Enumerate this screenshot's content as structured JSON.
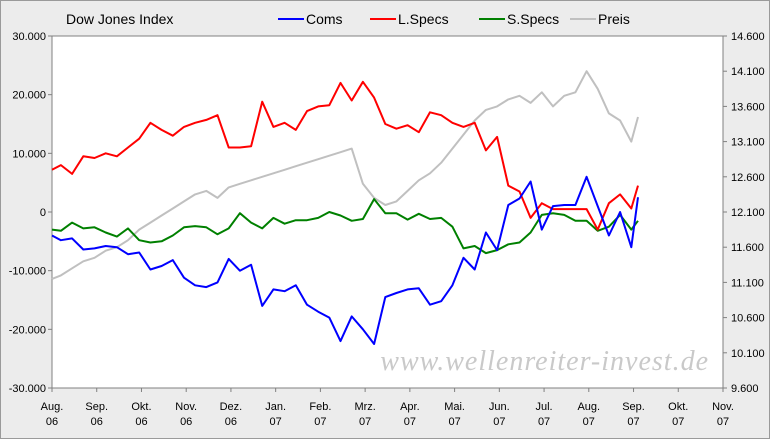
{
  "chart_data": {
    "type": "line",
    "title": "Dow Jones Index",
    "watermark": "www.wellenreiter-invest.de",
    "x_labels": [
      [
        "Aug.",
        "06"
      ],
      [
        "Sep.",
        "06"
      ],
      [
        "Okt.",
        "06"
      ],
      [
        "Nov.",
        "06"
      ],
      [
        "Dez.",
        "06"
      ],
      [
        "Jan.",
        "07"
      ],
      [
        "Feb.",
        "07"
      ],
      [
        "Mrz.",
        "07"
      ],
      [
        "Apr.",
        "07"
      ],
      [
        "Mai.",
        "07"
      ],
      [
        "Jun.",
        "07"
      ],
      [
        "Jul.",
        "07"
      ],
      [
        "Aug.",
        "07"
      ],
      [
        "Sep.",
        "07"
      ],
      [
        "Okt.",
        "07"
      ],
      [
        "Nov.",
        "07"
      ]
    ],
    "y_left": {
      "min": -30000,
      "max": 30000,
      "step": 10000,
      "ticks": [
        "30.000",
        "20.000",
        "10.000",
        "0",
        "-10.000",
        "-20.000",
        "-30.000"
      ]
    },
    "y_right": {
      "min": 9600,
      "max": 14600,
      "step": 500,
      "ticks": [
        "14.600",
        "14.100",
        "13.600",
        "13.100",
        "12.600",
        "12.100",
        "11.600",
        "11.100",
        "10.600",
        "10.100",
        "9.600"
      ]
    },
    "x_index_range": [
      0,
      15
    ],
    "series": [
      {
        "name": "Coms",
        "axis": "left",
        "color": "#0000ff",
        "x": [
          0,
          0.2,
          0.45,
          0.7,
          0.95,
          1.2,
          1.45,
          1.7,
          1.95,
          2.2,
          2.45,
          2.7,
          2.95,
          3.2,
          3.45,
          3.7,
          3.95,
          4.2,
          4.45,
          4.7,
          4.95,
          5.2,
          5.45,
          5.7,
          5.95,
          6.2,
          6.45,
          6.7,
          6.95,
          7.2,
          7.45,
          7.7,
          7.95,
          8.2,
          8.45,
          8.7,
          8.95,
          9.2,
          9.45,
          9.7,
          9.95,
          10.2,
          10.45,
          10.7,
          10.95,
          11.2,
          11.45,
          11.7,
          11.95,
          12.2,
          12.45,
          12.7,
          12.95,
          13.1
        ],
        "y": [
          -4000,
          -4800,
          -4500,
          -6400,
          -6200,
          -5800,
          -6000,
          -7200,
          -6900,
          -9800,
          -9200,
          -8200,
          -11200,
          -12500,
          -12800,
          -12000,
          -8000,
          -10000,
          -9000,
          -16000,
          -13200,
          -13500,
          -12500,
          -15800,
          -17000,
          -18000,
          -22000,
          -17800,
          -20000,
          -22500,
          -14500,
          -13800,
          -13200,
          -13000,
          -15800,
          -15200,
          -12500,
          -7800,
          -9800,
          -3500,
          -6500,
          1200,
          2300,
          5200,
          -3000,
          1000,
          1200,
          1200,
          6000,
          1000,
          -4000,
          0,
          -6000,
          2500
        ]
      },
      {
        "name": "L.Specs",
        "axis": "left",
        "color": "#ff0000",
        "x": [
          0,
          0.2,
          0.45,
          0.7,
          0.95,
          1.2,
          1.45,
          1.7,
          1.95,
          2.2,
          2.45,
          2.7,
          2.95,
          3.2,
          3.45,
          3.7,
          3.95,
          4.2,
          4.45,
          4.7,
          4.95,
          5.2,
          5.45,
          5.7,
          5.95,
          6.2,
          6.45,
          6.7,
          6.95,
          7.2,
          7.45,
          7.7,
          7.95,
          8.2,
          8.45,
          8.7,
          8.95,
          9.2,
          9.45,
          9.7,
          9.95,
          10.2,
          10.45,
          10.7,
          10.95,
          11.2,
          11.45,
          11.7,
          11.95,
          12.2,
          12.45,
          12.7,
          12.95,
          13.1
        ],
        "y": [
          7200,
          8000,
          6500,
          9500,
          9200,
          10000,
          9500,
          11000,
          12500,
          15200,
          14000,
          13000,
          14500,
          15200,
          15700,
          16500,
          11000,
          11000,
          11200,
          18800,
          14500,
          15200,
          14000,
          17200,
          18000,
          18200,
          22000,
          19000,
          22200,
          19500,
          15000,
          14200,
          14800,
          13600,
          17000,
          16500,
          15200,
          14500,
          15200,
          10500,
          12800,
          4500,
          3500,
          -1000,
          1500,
          500,
          500,
          500,
          500,
          -3000,
          1500,
          3000,
          600,
          4500
        ]
      },
      {
        "name": "S.Specs",
        "axis": "left",
        "color": "#008000",
        "x": [
          0,
          0.2,
          0.45,
          0.7,
          0.95,
          1.2,
          1.45,
          1.7,
          1.95,
          2.2,
          2.45,
          2.7,
          2.95,
          3.2,
          3.45,
          3.7,
          3.95,
          4.2,
          4.45,
          4.7,
          4.95,
          5.2,
          5.45,
          5.7,
          5.95,
          6.2,
          6.45,
          6.7,
          6.95,
          7.2,
          7.45,
          7.7,
          7.95,
          8.2,
          8.45,
          8.7,
          8.95,
          9.2,
          9.45,
          9.7,
          9.95,
          10.2,
          10.45,
          10.7,
          10.95,
          11.2,
          11.45,
          11.7,
          11.95,
          12.2,
          12.45,
          12.7,
          12.95,
          13.1
        ],
        "y": [
          -3000,
          -3200,
          -1800,
          -2800,
          -2600,
          -3500,
          -4200,
          -2800,
          -4800,
          -5200,
          -5000,
          -4000,
          -2600,
          -2400,
          -2600,
          -3800,
          -2800,
          -200,
          -1800,
          -2800,
          -1000,
          -2000,
          -1400,
          -1400,
          -1000,
          0,
          -600,
          -1500,
          -1200,
          2200,
          -200,
          -200,
          -1300,
          -300,
          -1200,
          -1000,
          -2500,
          -6200,
          -5800,
          -7000,
          -6500,
          -5500,
          -5200,
          -3500,
          -500,
          -200,
          -500,
          -1500,
          -1500,
          -3200,
          -2500,
          -500,
          -3000,
          -1500
        ]
      },
      {
        "name": "Preis",
        "axis": "right",
        "color": "#c0c0c0",
        "x": [
          0,
          0.2,
          0.45,
          0.7,
          0.95,
          1.2,
          1.45,
          1.7,
          1.95,
          2.2,
          2.45,
          2.7,
          2.95,
          3.2,
          3.45,
          3.7,
          3.95,
          4.2,
          4.45,
          4.7,
          4.95,
          5.2,
          5.45,
          5.7,
          5.95,
          6.2,
          6.45,
          6.7,
          6.95,
          7.2,
          7.45,
          7.7,
          7.95,
          8.2,
          8.45,
          8.7,
          8.95,
          9.2,
          9.45,
          9.7,
          9.95,
          10.2,
          10.45,
          10.7,
          10.95,
          11.2,
          11.45,
          11.7,
          11.95,
          12.2,
          12.45,
          12.7,
          12.95,
          13.1
        ],
        "y": [
          11150,
          11200,
          11300,
          11400,
          11450,
          11550,
          11600,
          11700,
          11850,
          11950,
          12050,
          12150,
          12250,
          12350,
          12400,
          12300,
          12450,
          12500,
          12550,
          12600,
          12650,
          12700,
          12750,
          12800,
          12850,
          12900,
          12950,
          13000,
          12500,
          12300,
          12200,
          12250,
          12400,
          12550,
          12650,
          12800,
          13000,
          13200,
          13400,
          13550,
          13600,
          13700,
          13750,
          13650,
          13800,
          13600,
          13750,
          13800,
          14100,
          13850,
          13500,
          13400,
          13100,
          13450
        ]
      }
    ],
    "grid": false,
    "legend_position": "top"
  }
}
